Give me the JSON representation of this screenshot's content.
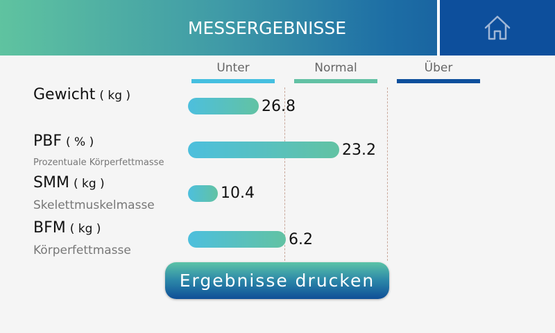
{
  "header": {
    "title": "MESSERGEBNISSE",
    "home_icon": "home-icon"
  },
  "ranges": [
    {
      "label": "Unter",
      "color": "#45bfe0"
    },
    {
      "label": "Normal",
      "color": "#62c1a4"
    },
    {
      "label": "Über",
      "color": "#0d4f9c"
    }
  ],
  "measurements": [
    {
      "name": "Gewicht",
      "unit": "( kg )",
      "subtitle": "",
      "value": "26.8"
    },
    {
      "name": "PBF",
      "unit": "( % )",
      "subtitle": "Prozentuale Körperfettmasse",
      "value": "23.2"
    },
    {
      "name": "SMM",
      "unit": "( kg )",
      "subtitle": "Skelettmuskelmasse",
      "value": "10.4"
    },
    {
      "name": "BFM",
      "unit": "( kg )",
      "subtitle": "Körperfettmasse",
      "value": "6.2"
    }
  ],
  "actions": {
    "print_label": "Ergebnisse drucken"
  },
  "colors": {
    "bar_start": "#4dbfdd",
    "bar_end": "#62c2a3",
    "header_dark": "#0d4f9c"
  }
}
